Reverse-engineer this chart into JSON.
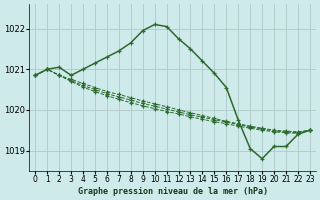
{
  "xlabel": "Graphe pression niveau de la mer (hPa)",
  "background_color": "#ceeaea",
  "grid_color": "#b0c8c8",
  "line_color": "#2d6a2d",
  "ylim": [
    1018.5,
    1022.6
  ],
  "xlim": [
    -0.5,
    23.5
  ],
  "yticks": [
    1019,
    1020,
    1021,
    1022
  ],
  "xticks": [
    0,
    1,
    2,
    3,
    4,
    5,
    6,
    7,
    8,
    9,
    10,
    11,
    12,
    13,
    14,
    15,
    16,
    17,
    18,
    19,
    20,
    21,
    22,
    23
  ],
  "series_main": [
    1020.85,
    1021.0,
    1021.05,
    1020.85,
    1021.0,
    1021.15,
    1021.3,
    1021.45,
    1021.65,
    1021.95,
    1022.1,
    1022.05,
    1021.75,
    1021.5,
    1021.2,
    1020.9,
    1020.55,
    1019.75,
    1019.05,
    1018.8,
    1019.1,
    1019.1,
    1019.4,
    1019.5
  ],
  "series_flat1": [
    1020.85,
    1021.0,
    1020.85,
    1020.75,
    1020.65,
    1020.55,
    1020.45,
    1020.38,
    1020.3,
    1020.22,
    1020.15,
    1020.08,
    1020.0,
    1019.93,
    1019.86,
    1019.79,
    1019.72,
    1019.66,
    1019.6,
    1019.55,
    1019.5,
    1019.48,
    1019.46,
    1019.5
  ],
  "series_flat2": [
    1020.85,
    1021.0,
    1020.85,
    1020.72,
    1020.6,
    1020.5,
    1020.4,
    1020.32,
    1020.24,
    1020.16,
    1020.09,
    1020.02,
    1019.95,
    1019.88,
    1019.82,
    1019.76,
    1019.7,
    1019.64,
    1019.58,
    1019.53,
    1019.48,
    1019.46,
    1019.44,
    1019.5
  ],
  "series_flat3": [
    1020.85,
    1021.0,
    1020.85,
    1020.7,
    1020.56,
    1020.45,
    1020.35,
    1020.26,
    1020.18,
    1020.1,
    1020.03,
    1019.96,
    1019.9,
    1019.83,
    1019.77,
    1019.71,
    1019.66,
    1019.6,
    1019.55,
    1019.5,
    1019.46,
    1019.44,
    1019.42,
    1019.5
  ]
}
